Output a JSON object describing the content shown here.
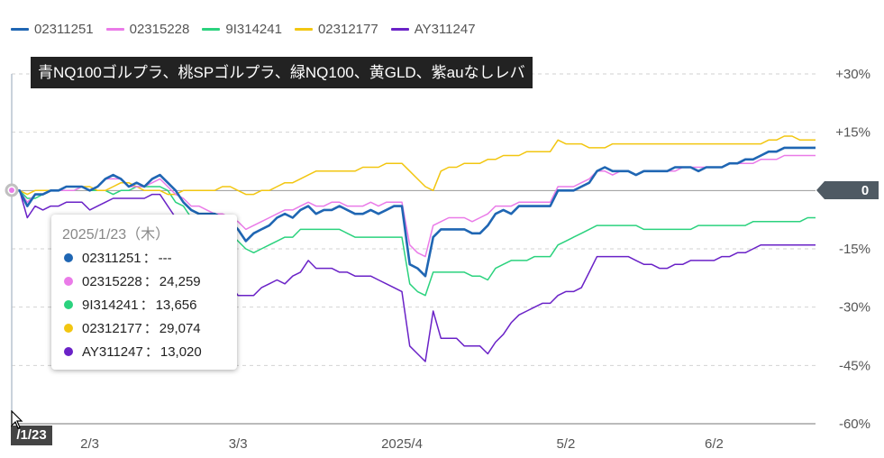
{
  "legend": [
    {
      "name": "02311251",
      "color": "#1f66b3"
    },
    {
      "name": "02315228",
      "color": "#ea7be8"
    },
    {
      "name": "9I314241",
      "color": "#2bd27e"
    },
    {
      "name": "02312177",
      "color": "#f2c611"
    },
    {
      "name": "AY311247",
      "color": "#6a22c7"
    }
  ],
  "title": "青NQ100ゴルプラ、桃SPゴルプラ、緑NQ100、黄GLD、紫auなしレバ",
  "tooltip": {
    "date": "2025/1/23（木）",
    "separator": "：",
    "rows": [
      {
        "name": "02311251",
        "value": "---",
        "color": "#1f66b3"
      },
      {
        "name": "02315228",
        "value": "24,259",
        "color": "#ea7be8"
      },
      {
        "name": "9I314241",
        "value": "13,656",
        "color": "#2bd27e"
      },
      {
        "name": "02312177",
        "value": "29,074",
        "color": "#f2c611"
      },
      {
        "name": "AY311247",
        "value": "13,020",
        "color": "#6a22c7"
      }
    ]
  },
  "current_date_label": "/1/23",
  "zero_badge": "0",
  "chart_data": {
    "type": "line",
    "x_tick_labels": [
      "2/3",
      "3/3",
      "2025/4",
      "5/2",
      "6/2"
    ],
    "x_tick_index": [
      10,
      29,
      50,
      71,
      90
    ],
    "y_tick_labels": [
      "+30%",
      "+15%",
      "0",
      "-15%",
      "-30%",
      "-45%",
      "-60%"
    ],
    "y_ticks": [
      30,
      15,
      0,
      -15,
      -30,
      -45,
      -60
    ],
    "ylim": [
      -60,
      30
    ],
    "grid": true,
    "x_start": "2025/1/23",
    "series": [
      {
        "name": "02311251",
        "color": "#1f66b3",
        "values": [
          0,
          0,
          -4,
          -1,
          -1,
          0,
          0,
          1,
          1,
          1,
          0,
          1,
          3,
          4,
          3,
          1,
          2,
          1,
          3,
          4,
          2,
          0,
          -3,
          -5,
          -6,
          -6,
          -6,
          -7,
          -8,
          -10,
          -13,
          -11,
          -10,
          -9,
          -7,
          -6,
          -7,
          -5,
          -4,
          -6,
          -5,
          -5,
          -4,
          -5,
          -6,
          -6,
          -5,
          -6,
          -5,
          -4,
          -4,
          -19,
          -20,
          -22,
          -12,
          -10,
          -10,
          -10,
          -10,
          -11,
          -11,
          -9,
          -6,
          -5,
          -6,
          -4,
          -4,
          -4,
          -4,
          -4,
          0,
          0,
          0,
          1,
          2,
          5,
          6,
          5,
          5,
          5,
          4,
          5,
          5,
          5,
          5,
          6,
          6,
          6,
          5,
          6,
          6,
          6,
          7,
          7,
          8,
          8,
          9,
          10,
          10,
          11,
          11,
          11,
          11,
          11
        ]
      },
      {
        "name": "02315228",
        "color": "#ea7be8",
        "values": [
          0,
          0,
          -3,
          -1,
          -1,
          0,
          0,
          0,
          0,
          1,
          0,
          1,
          3,
          3,
          3,
          1,
          1,
          1,
          2,
          3,
          1,
          -1,
          -2,
          -4,
          -4,
          -5,
          -6,
          -6,
          -7,
          -8,
          -10,
          -9,
          -8,
          -7,
          -6,
          -5,
          -5,
          -4,
          -3,
          -4,
          -4,
          -3,
          -3,
          -4,
          -4,
          -4,
          -3,
          -4,
          -3,
          -3,
          -3,
          -14,
          -16,
          -17,
          -9,
          -8,
          -7,
          -7,
          -7,
          -8,
          -7,
          -6,
          -4,
          -4,
          -4,
          -3,
          -3,
          -3,
          -3,
          -3,
          1,
          1,
          1,
          2,
          3,
          5,
          5,
          4,
          5,
          5,
          4,
          5,
          5,
          5,
          5,
          5,
          6,
          6,
          6,
          6,
          6,
          6,
          7,
          7,
          7,
          7,
          8,
          8,
          8,
          9,
          9,
          9,
          9,
          9
        ]
      },
      {
        "name": "02312177",
        "color": "#f2c611",
        "values": [
          0,
          0,
          -1,
          0,
          0,
          0,
          0,
          1,
          1,
          1,
          1,
          0,
          0,
          1,
          2,
          2,
          1,
          0,
          0,
          0,
          -1,
          -1,
          0,
          0,
          0,
          0,
          0,
          1,
          1,
          0,
          -1,
          -1,
          0,
          0,
          1,
          2,
          2,
          3,
          4,
          5,
          5,
          5,
          5,
          5,
          5,
          6,
          6,
          6,
          7,
          7,
          7,
          5,
          3,
          1,
          0,
          5,
          6,
          6,
          7,
          7,
          7,
          8,
          8,
          9,
          9,
          9,
          10,
          10,
          10,
          10,
          13,
          12,
          12,
          12,
          11,
          11,
          11,
          12,
          12,
          12,
          12,
          12,
          12,
          12,
          12,
          12,
          12,
          12,
          12,
          12,
          12,
          12,
          12,
          12,
          12,
          12,
          12,
          13,
          13,
          14,
          14,
          13,
          13,
          13
        ]
      },
      {
        "name": "9I314241",
        "color": "#2bd27e",
        "values": [
          0,
          0,
          -2,
          -2,
          -1,
          0,
          0,
          0,
          0,
          1,
          0,
          0,
          0,
          -1,
          0,
          0,
          1,
          1,
          1,
          1,
          0,
          -3,
          -4,
          -7,
          -9,
          -10,
          -10,
          -11,
          -11,
          -13,
          -15,
          -16,
          -15,
          -14,
          -13,
          -12,
          -12,
          -10,
          -10,
          -10,
          -10,
          -10,
          -10,
          -11,
          -12,
          -12,
          -12,
          -12,
          -12,
          -12,
          -12,
          -24,
          -26,
          -27,
          -21,
          -21,
          -21,
          -21,
          -21,
          -22,
          -22,
          -23,
          -20,
          -19,
          -18,
          -18,
          -18,
          -17,
          -17,
          -17,
          -14,
          -13,
          -12,
          -11,
          -10,
          -9,
          -9,
          -9,
          -9,
          -9,
          -9,
          -10,
          -10,
          -10,
          -10,
          -10,
          -10,
          -10,
          -9,
          -9,
          -9,
          -9,
          -9,
          -9,
          -9,
          -8,
          -8,
          -8,
          -8,
          -8,
          -8,
          -8,
          -7,
          -7
        ]
      },
      {
        "name": "AY311247",
        "color": "#6a22c7",
        "values": [
          0,
          0,
          -7,
          -4,
          -5,
          -4,
          -4,
          -3,
          -3,
          -3,
          -5,
          -4,
          -3,
          -2,
          -2,
          -2,
          -2,
          -2,
          -1,
          -1,
          -4,
          -7,
          -10,
          -13,
          -16,
          -16,
          -17,
          -18,
          -24,
          -27,
          -27,
          -27,
          -25,
          -24,
          -23,
          -24,
          -22,
          -21,
          -18,
          -20,
          -20,
          -20,
          -21,
          -21,
          -22,
          -22,
          -22,
          -23,
          -24,
          -25,
          -26,
          -40,
          -42,
          -44,
          -31,
          -38,
          -38,
          -38,
          -40,
          -40,
          -40,
          -42,
          -39,
          -37,
          -34,
          -32,
          -31,
          -30,
          -29,
          -29,
          -27,
          -26,
          -26,
          -25,
          -21,
          -17,
          -17,
          -17,
          -17,
          -17,
          -18,
          -19,
          -19,
          -20,
          -20,
          -19,
          -19,
          -18,
          -18,
          -18,
          -18,
          -17,
          -17,
          -16,
          -16,
          -15,
          -14,
          -14,
          -14,
          -14,
          -14,
          -14,
          -14,
          -14
        ]
      }
    ]
  }
}
